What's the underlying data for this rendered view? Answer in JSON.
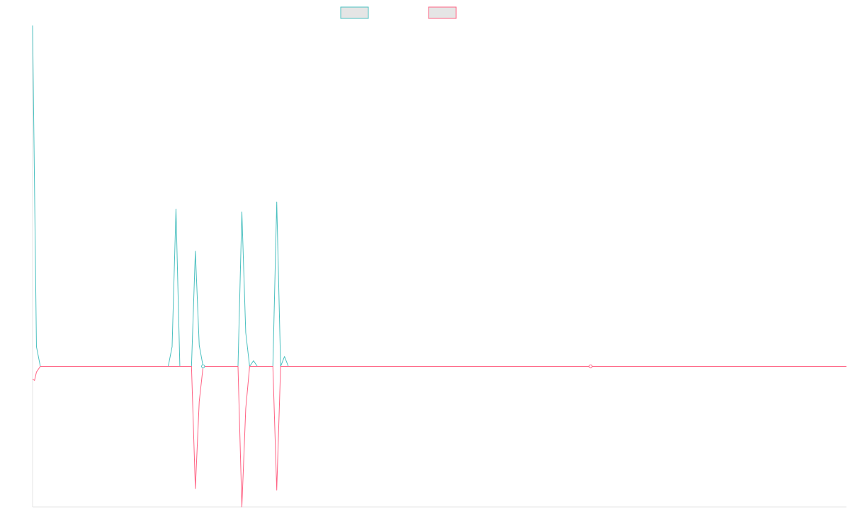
{
  "colors": {
    "background": "#ffffff",
    "axis": "#e4e4e4",
    "series_0": "#4bc0c0",
    "series_1": "#ff6384",
    "legend_fill": "#e5e5e5"
  },
  "chart_data": {
    "type": "line",
    "title": "",
    "xlabel": "",
    "ylabel": "",
    "legend": {
      "position": "top-center",
      "entries": [
        "",
        ""
      ]
    },
    "grid": false,
    "x_range": [
      0,
      210
    ],
    "ylim": [
      -1,
      2.426
    ],
    "series": [
      {
        "color": "#4bc0c0",
        "points": [
          [
            0,
            2.426
          ],
          [
            1,
            0.14
          ],
          [
            2,
            0
          ],
          [
            35,
            0
          ],
          [
            36,
            0.14
          ],
          [
            37,
            1.12
          ],
          [
            38,
            0
          ],
          [
            40,
            0
          ],
          [
            41,
            0
          ],
          [
            42,
            0.82
          ],
          [
            43,
            0.15
          ],
          [
            44,
            0
          ],
          [
            46,
            0
          ],
          [
            47,
            0
          ],
          [
            48,
            0
          ],
          [
            49,
            0
          ],
          [
            50,
            0
          ],
          [
            51,
            0
          ],
          [
            53,
            0
          ],
          [
            54,
            1.1
          ],
          [
            55,
            0.24
          ],
          [
            56,
            0
          ],
          [
            57,
            0.04
          ],
          [
            58,
            0
          ],
          [
            61,
            0
          ],
          [
            62,
            0
          ],
          [
            63,
            1.17
          ],
          [
            64,
            0
          ],
          [
            65,
            0.07
          ],
          [
            66,
            0
          ],
          [
            100,
            0
          ],
          [
            144,
            0
          ],
          [
            175,
            0
          ],
          [
            210,
            0
          ]
        ]
      },
      {
        "color": "#ff6384",
        "points": [
          [
            0,
            -0.09
          ],
          [
            0.5,
            -0.1
          ],
          [
            1,
            -0.04
          ],
          [
            2,
            0
          ],
          [
            35,
            0
          ],
          [
            36,
            0
          ],
          [
            41,
            0
          ],
          [
            42,
            -0.87
          ],
          [
            43,
            -0.25
          ],
          [
            44,
            0
          ],
          [
            48,
            0
          ],
          [
            49,
            0
          ],
          [
            50,
            0
          ],
          [
            51,
            0
          ],
          [
            53,
            0
          ],
          [
            54,
            -1.0
          ],
          [
            55,
            -0.3
          ],
          [
            56,
            0
          ],
          [
            58,
            0
          ],
          [
            59,
            0
          ],
          [
            60,
            0
          ],
          [
            61,
            0
          ],
          [
            62,
            0
          ],
          [
            63,
            -0.88
          ],
          [
            64,
            0
          ],
          [
            100,
            0
          ],
          [
            144,
            0
          ],
          [
            175,
            0
          ],
          [
            210,
            0
          ]
        ]
      }
    ],
    "markers": [
      {
        "series": 0,
        "x": 44
      },
      {
        "series": 1,
        "x": 144
      }
    ]
  }
}
